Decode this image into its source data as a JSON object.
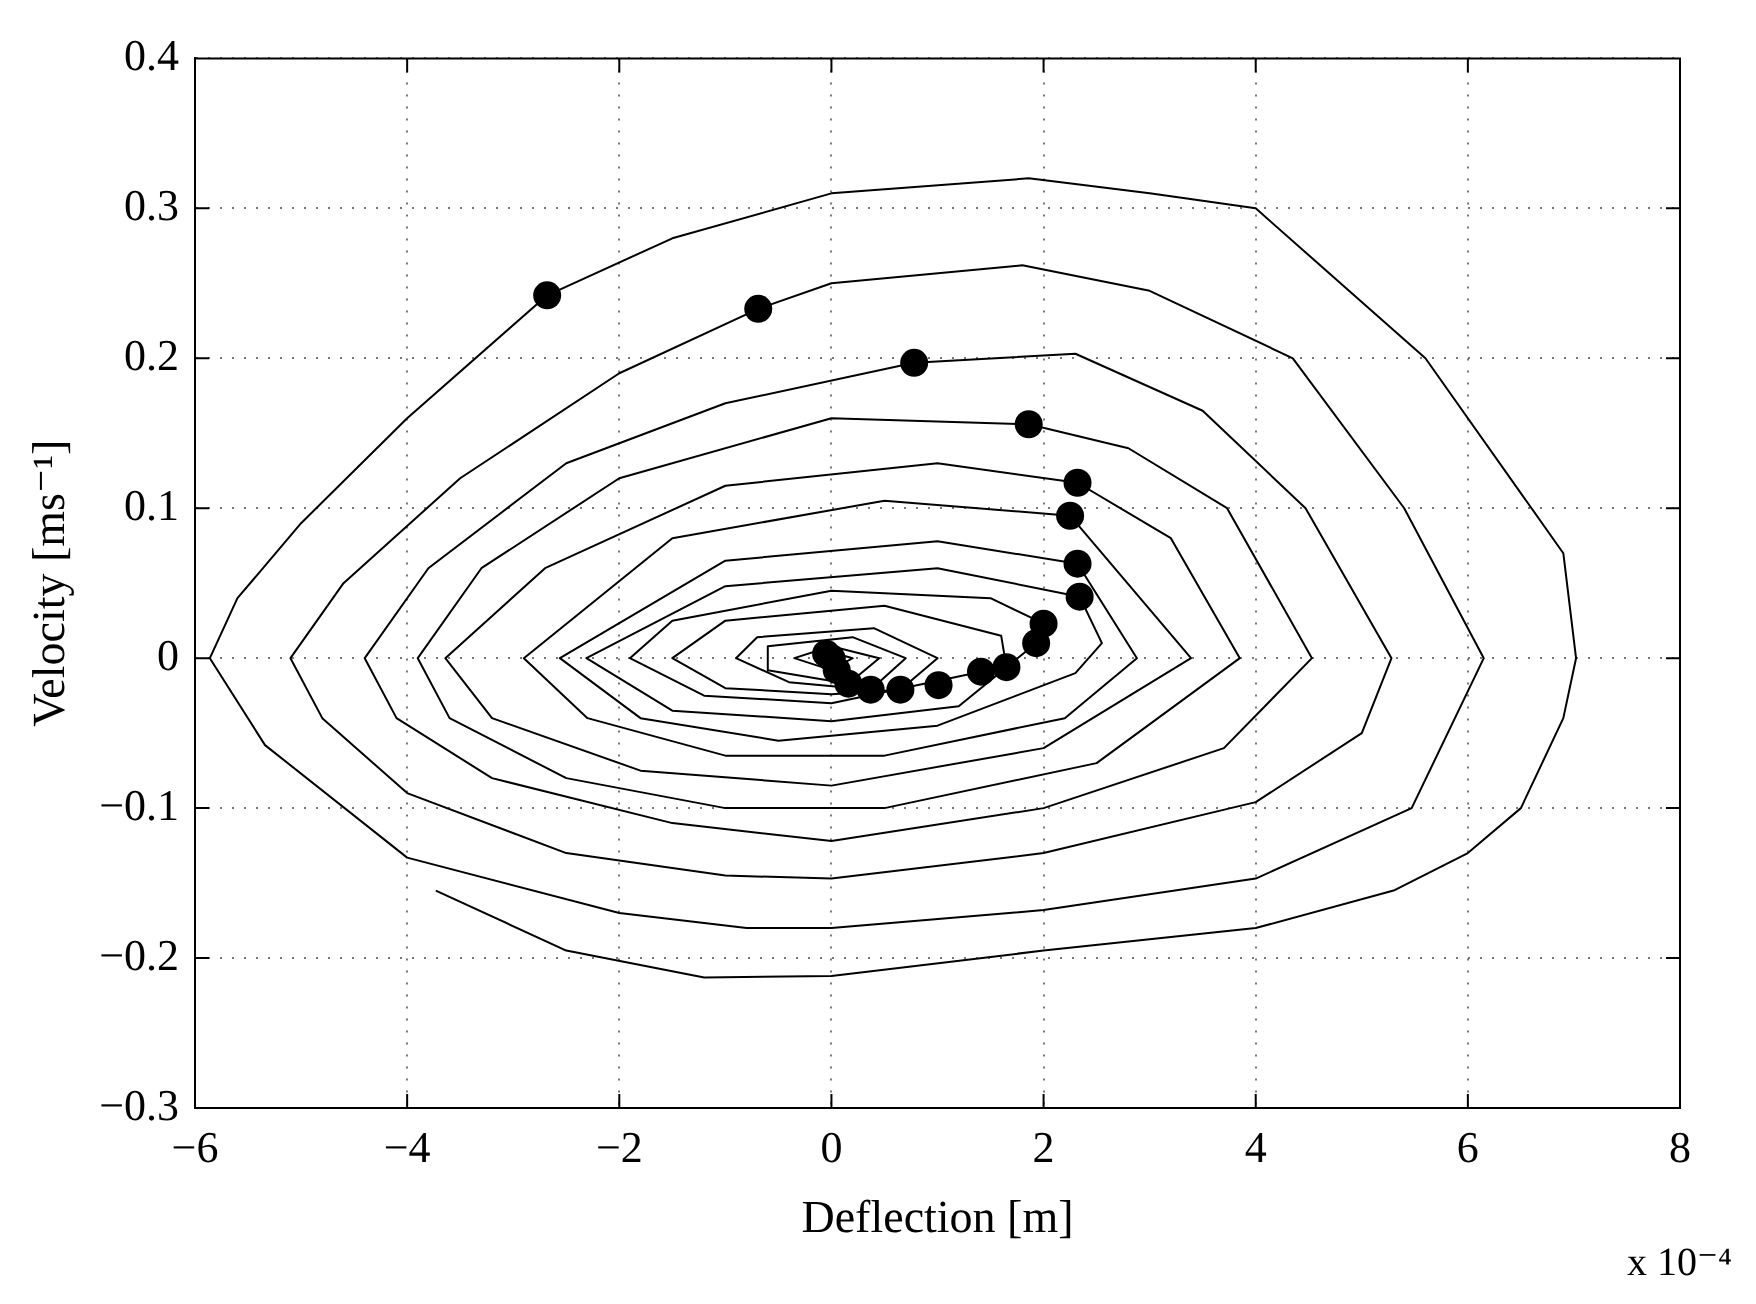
{
  "chart_data": {
    "type": "line",
    "xlabel": "Deflection [m]",
    "ylabel": "Velocity [ms⁻¹]",
    "annotations": [
      "x 10⁻⁴"
    ],
    "xlim": [
      -6,
      8
    ],
    "xticks": [
      -6,
      -4,
      -2,
      0,
      2,
      4,
      6,
      8
    ],
    "ylim": [
      -0.3,
      0.4
    ],
    "yticks": [
      -0.3,
      -0.2,
      -0.1,
      0,
      0.1,
      0.2,
      0.3,
      0.4
    ],
    "grid": true,
    "legend": false,
    "series": [
      {
        "type": "line",
        "color": "#000000",
        "marker": "none",
        "line_style": "solid",
        "x": [
          -3.73,
          -2.5,
          -1.2,
          0,
          2,
          4,
          5.3,
          6.0,
          6.5,
          6.9,
          7.02,
          6.9,
          6.6,
          5.6,
          4.0,
          3,
          1.86,
          0,
          -1.5,
          -2.68,
          -4,
          -5,
          -5.6,
          -5.86,
          -5.34,
          -4,
          -2,
          -0.8,
          0,
          2,
          4,
          5.47,
          6.15,
          5.4,
          4.35,
          3,
          1.8,
          0,
          -0.69,
          -2,
          -3.5,
          -4.6,
          -5.1,
          -4.8,
          -4,
          -2.5,
          -1,
          0,
          2,
          4,
          5.0,
          5.28,
          4.47,
          3.5,
          2.3,
          0.78,
          -1,
          -2.5,
          -3.8,
          -4.4,
          -4.1,
          -3.2,
          -1.5,
          0,
          2,
          3.7,
          4.53,
          3.73,
          2.8,
          1.86,
          0,
          -2,
          -3.3,
          -3.9,
          -3.6,
          -2.5,
          -1,
          0.5,
          2.5,
          3.85,
          3.2,
          2.32,
          1,
          -1,
          -2.7,
          -3.64,
          -3.2,
          -1.8,
          0,
          2,
          3.39,
          2.25,
          0.5,
          -1.5,
          -2.9,
          -2.3,
          -1,
          0.5,
          2.2,
          2.88,
          2.32,
          1,
          -1,
          -2.56,
          -1.8,
          -0.5,
          1,
          2.3,
          2.55,
          2.34,
          1,
          -1,
          -2.31,
          -1.5,
          0,
          1.2,
          1.93,
          2.0,
          1.5,
          0,
          -1.5,
          -1.9,
          -1.2,
          0,
          1.41,
          1.65,
          1.6,
          0.5,
          -1,
          -1.5,
          -1,
          0,
          0.65,
          1.0,
          0.4,
          -0.7,
          -0.9,
          -0.4,
          0.37,
          0.7,
          0.2,
          -0.6,
          -0.6,
          0.16,
          0.45,
          0,
          -0.35,
          0,
          0.2,
          0,
          -0.1,
          0
        ],
        "values": [
          -0.155,
          -0.195,
          -0.213,
          -0.212,
          -0.195,
          -0.18,
          -0.155,
          -0.13,
          -0.1,
          -0.04,
          0.0,
          0.07,
          0.1,
          0.2,
          0.3,
          0.31,
          0.32,
          0.31,
          0.28,
          0.242,
          0.16,
          0.09,
          0.04,
          0.0,
          -0.058,
          -0.133,
          -0.17,
          -0.18,
          -0.18,
          -0.168,
          -0.147,
          -0.1,
          0.0,
          0.1,
          0.2,
          0.245,
          0.262,
          0.25,
          0.233,
          0.19,
          0.12,
          0.05,
          0.0,
          -0.04,
          -0.09,
          -0.13,
          -0.145,
          -0.147,
          -0.13,
          -0.096,
          -0.05,
          0.0,
          0.1,
          0.165,
          0.203,
          0.197,
          0.17,
          0.13,
          0.06,
          0.0,
          -0.04,
          -0.08,
          -0.11,
          -0.122,
          -0.1,
          -0.06,
          0.0,
          0.1,
          0.14,
          0.156,
          0.16,
          0.12,
          0.06,
          0.0,
          -0.04,
          -0.08,
          -0.1,
          -0.1,
          -0.07,
          0.0,
          0.08,
          0.117,
          0.13,
          0.115,
          0.06,
          0.0,
          -0.04,
          -0.075,
          -0.085,
          -0.06,
          0.0,
          0.095,
          0.105,
          0.08,
          0.0,
          -0.04,
          -0.065,
          -0.065,
          -0.04,
          0.0,
          0.063,
          0.078,
          0.065,
          0.0,
          -0.04,
          -0.055,
          -0.045,
          -0.01,
          0.01,
          0.041,
          0.06,
          0.048,
          0.0,
          -0.035,
          -0.042,
          -0.032,
          0.01,
          0.023,
          0.04,
          0.045,
          0.025,
          0.0,
          -0.025,
          -0.03,
          -0.009,
          -0.006,
          0.015,
          0.035,
          0.025,
          0.0,
          -0.02,
          -0.024,
          -0.021,
          0.0,
          0.02,
          0.014,
          0.0,
          -0.016,
          -0.021,
          0.0,
          0.014,
          0.008,
          -0.008,
          -0.017,
          0.0,
          0.008,
          0.0,
          -0.008,
          0,
          0.004,
          0,
          0
        ]
      },
      {
        "type": "scatter",
        "color": "#000000",
        "marker": "circle",
        "x": [
          -2.68,
          -0.69,
          0.78,
          1.86,
          2.32,
          2.25,
          2.32,
          2.34,
          2.0,
          1.93,
          1.65,
          1.41,
          1.01,
          0.65,
          0.37,
          0.16,
          0.05,
          0,
          -0.05
        ],
        "values": [
          0.242,
          0.233,
          0.197,
          0.156,
          0.117,
          0.095,
          0.063,
          0.041,
          0.023,
          0.01,
          -0.006,
          -0.009,
          -0.018,
          -0.021,
          -0.021,
          -0.017,
          -0.008,
          0,
          0.003
        ]
      }
    ]
  }
}
